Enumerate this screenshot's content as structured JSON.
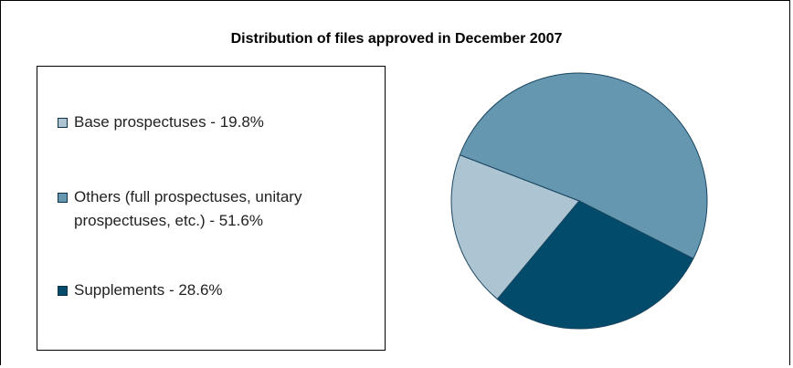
{
  "chart_data": {
    "type": "pie",
    "title": "Distribution of files approved in December 2007",
    "categories": [
      "Base prospectuses - 19.8%",
      "Others (full prospectuses, unitary prospectuses, etc.) - 51.6%",
      "Supplements - 28.6%"
    ],
    "values": [
      19.8,
      51.6,
      28.6
    ],
    "colors": [
      "#adc5d3",
      "#6598b0",
      "#024b6b"
    ],
    "legend": "left"
  }
}
